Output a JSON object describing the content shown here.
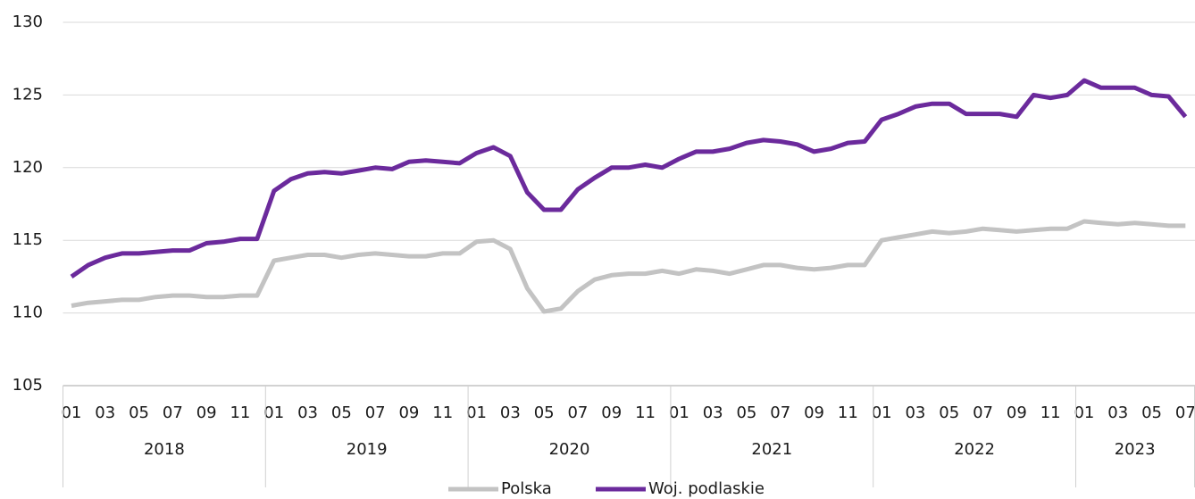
{
  "chart_data": {
    "type": "line",
    "categories": [
      "01",
      null,
      "03",
      null,
      "05",
      null,
      "07",
      null,
      "09",
      null,
      "11",
      null,
      "01",
      null,
      "03",
      null,
      "05",
      null,
      "07",
      null,
      "09",
      null,
      "11",
      null,
      "01",
      null,
      "03",
      null,
      "05",
      null,
      "07",
      null,
      "09",
      null,
      "11",
      null,
      "01",
      null,
      "03",
      null,
      "05",
      null,
      "07",
      null,
      "09",
      null,
      "11",
      null,
      "01",
      null,
      "03",
      null,
      "05",
      null,
      "07",
      null,
      "09",
      null,
      "11",
      null,
      "01",
      null,
      "03",
      null,
      "05",
      null,
      "07"
    ],
    "year_groups": [
      "2018",
      "2019",
      "2020",
      "2021",
      "2022",
      "2023"
    ],
    "ylim": [
      105,
      130
    ],
    "yticks": [
      105,
      110,
      115,
      120,
      125,
      130
    ],
    "grid": true,
    "legend": "bottom",
    "series": [
      {
        "name": "Polska",
        "color": "#c3c3c3",
        "values": [
          110.5,
          110.7,
          110.8,
          110.9,
          110.9,
          111.1,
          111.2,
          111.2,
          111.1,
          111.1,
          111.2,
          111.2,
          113.6,
          113.8,
          114.0,
          114.0,
          113.8,
          114.0,
          114.1,
          114.0,
          113.9,
          113.9,
          114.1,
          114.1,
          114.9,
          115.0,
          114.4,
          111.7,
          110.1,
          110.3,
          111.5,
          112.3,
          112.6,
          112.7,
          112.7,
          112.9,
          112.7,
          113.0,
          112.9,
          112.7,
          113.0,
          113.3,
          113.3,
          113.1,
          113.0,
          113.1,
          113.3,
          113.3,
          115.0,
          115.2,
          115.4,
          115.6,
          115.5,
          115.6,
          115.8,
          115.7,
          115.6,
          115.7,
          115.8,
          115.8,
          116.3,
          116.2,
          116.1,
          116.2,
          116.1,
          116.0,
          116.0
        ]
      },
      {
        "name": "Woj. podlaskie",
        "color": "#6b2a9c",
        "values": [
          112.5,
          113.3,
          113.8,
          114.1,
          114.1,
          114.2,
          114.3,
          114.3,
          114.8,
          114.9,
          115.1,
          115.1,
          118.4,
          119.2,
          119.6,
          119.7,
          119.6,
          119.8,
          120.0,
          119.9,
          120.4,
          120.5,
          120.4,
          120.3,
          121.0,
          121.4,
          120.8,
          118.3,
          117.1,
          117.1,
          118.5,
          119.3,
          120.0,
          120.0,
          120.2,
          120.0,
          120.6,
          121.1,
          121.1,
          121.3,
          121.7,
          121.9,
          121.8,
          121.6,
          121.1,
          121.3,
          121.7,
          121.8,
          123.3,
          123.7,
          124.2,
          124.4,
          124.4,
          123.7,
          123.7,
          123.7,
          123.5,
          125.0,
          124.8,
          125.0,
          126.0,
          125.5,
          125.5,
          125.5,
          125.0,
          124.9,
          123.5
        ]
      }
    ]
  }
}
